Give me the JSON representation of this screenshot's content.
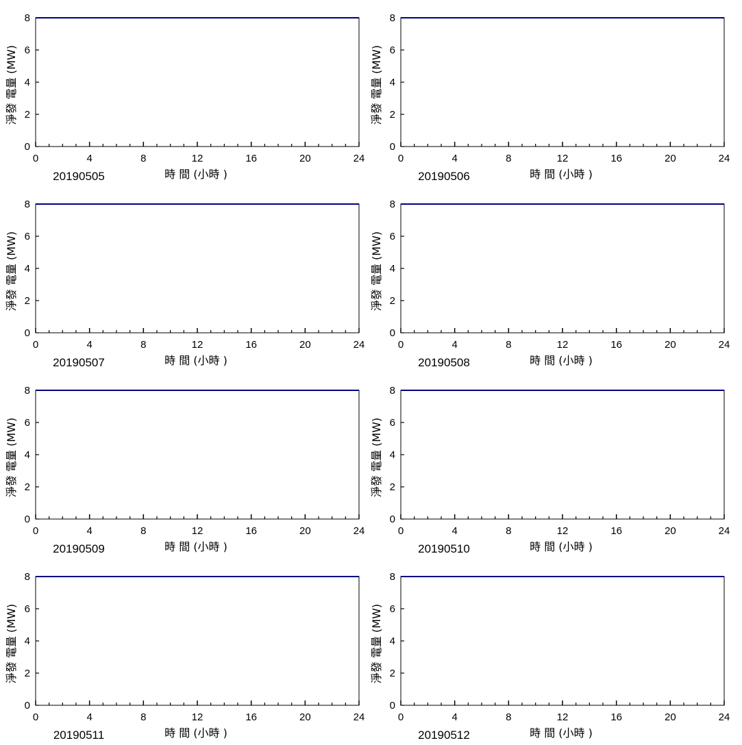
{
  "chart_data": [
    {
      "type": "line",
      "date_label": "20190505",
      "xlabel": "時 間 (小時 )",
      "ylabel": "淨發 電量 (MW)",
      "xlim": [
        0,
        24
      ],
      "ylim": [
        0,
        8
      ],
      "xticks": [
        0,
        4,
        8,
        12,
        16,
        20,
        24
      ],
      "yticks": [
        0,
        2,
        4,
        6,
        8
      ],
      "series": [
        {
          "x": [
            0,
            24
          ],
          "y": [
            8,
            8
          ]
        }
      ]
    },
    {
      "type": "line",
      "date_label": "20190506",
      "xlabel": "時 間 (小時 )",
      "ylabel": "淨發 電量 (MW)",
      "xlim": [
        0,
        24
      ],
      "ylim": [
        0,
        8
      ],
      "xticks": [
        0,
        4,
        8,
        12,
        16,
        20,
        24
      ],
      "yticks": [
        0,
        2,
        4,
        6,
        8
      ],
      "series": [
        {
          "x": [
            0,
            24
          ],
          "y": [
            8,
            8
          ]
        }
      ]
    },
    {
      "type": "line",
      "date_label": "20190507",
      "xlabel": "時 間 (小時 )",
      "ylabel": "淨發 電量 (MW)",
      "xlim": [
        0,
        24
      ],
      "ylim": [
        0,
        8
      ],
      "xticks": [
        0,
        4,
        8,
        12,
        16,
        20,
        24
      ],
      "yticks": [
        0,
        2,
        4,
        6,
        8
      ],
      "series": [
        {
          "x": [
            0,
            24
          ],
          "y": [
            8,
            8
          ]
        }
      ]
    },
    {
      "type": "line",
      "date_label": "20190508",
      "xlabel": "時 間 (小時 )",
      "ylabel": "淨發 電量 (MW)",
      "xlim": [
        0,
        24
      ],
      "ylim": [
        0,
        8
      ],
      "xticks": [
        0,
        4,
        8,
        12,
        16,
        20,
        24
      ],
      "yticks": [
        0,
        2,
        4,
        6,
        8
      ],
      "series": [
        {
          "x": [
            0,
            24
          ],
          "y": [
            8,
            8
          ]
        }
      ]
    },
    {
      "type": "line",
      "date_label": "20190509",
      "xlabel": "時 間 (小時 )",
      "ylabel": "淨發 電量 (MW)",
      "xlim": [
        0,
        24
      ],
      "ylim": [
        0,
        8
      ],
      "xticks": [
        0,
        4,
        8,
        12,
        16,
        20,
        24
      ],
      "yticks": [
        0,
        2,
        4,
        6,
        8
      ],
      "series": [
        {
          "x": [
            0,
            24
          ],
          "y": [
            8,
            8
          ]
        }
      ]
    },
    {
      "type": "line",
      "date_label": "20190510",
      "xlabel": "時 間 (小時 )",
      "ylabel": "淨發 電量 (MW)",
      "xlim": [
        0,
        24
      ],
      "ylim": [
        0,
        8
      ],
      "xticks": [
        0,
        4,
        8,
        12,
        16,
        20,
        24
      ],
      "yticks": [
        0,
        2,
        4,
        6,
        8
      ],
      "series": [
        {
          "x": [
            0,
            24
          ],
          "y": [
            8,
            8
          ]
        }
      ]
    },
    {
      "type": "line",
      "date_label": "20190511",
      "xlabel": "時 間 (小時 )",
      "ylabel": "淨發 電量 (MW)",
      "xlim": [
        0,
        24
      ],
      "ylim": [
        0,
        8
      ],
      "xticks": [
        0,
        4,
        8,
        12,
        16,
        20,
        24
      ],
      "yticks": [
        0,
        2,
        4,
        6,
        8
      ],
      "series": [
        {
          "x": [
            0,
            24
          ],
          "y": [
            8,
            8
          ]
        }
      ]
    },
    {
      "type": "line",
      "date_label": "20190512",
      "xlabel": "時 間 (小時 )",
      "ylabel": "淨發 電量 (MW)",
      "xlim": [
        0,
        24
      ],
      "ylim": [
        0,
        8
      ],
      "xticks": [
        0,
        4,
        8,
        12,
        16,
        20,
        24
      ],
      "yticks": [
        0,
        2,
        4,
        6,
        8
      ],
      "series": [
        {
          "x": [
            0,
            24
          ],
          "y": [
            8,
            8
          ]
        }
      ]
    }
  ],
  "colors": {
    "series_line": "#000080",
    "axes": "#000000"
  }
}
